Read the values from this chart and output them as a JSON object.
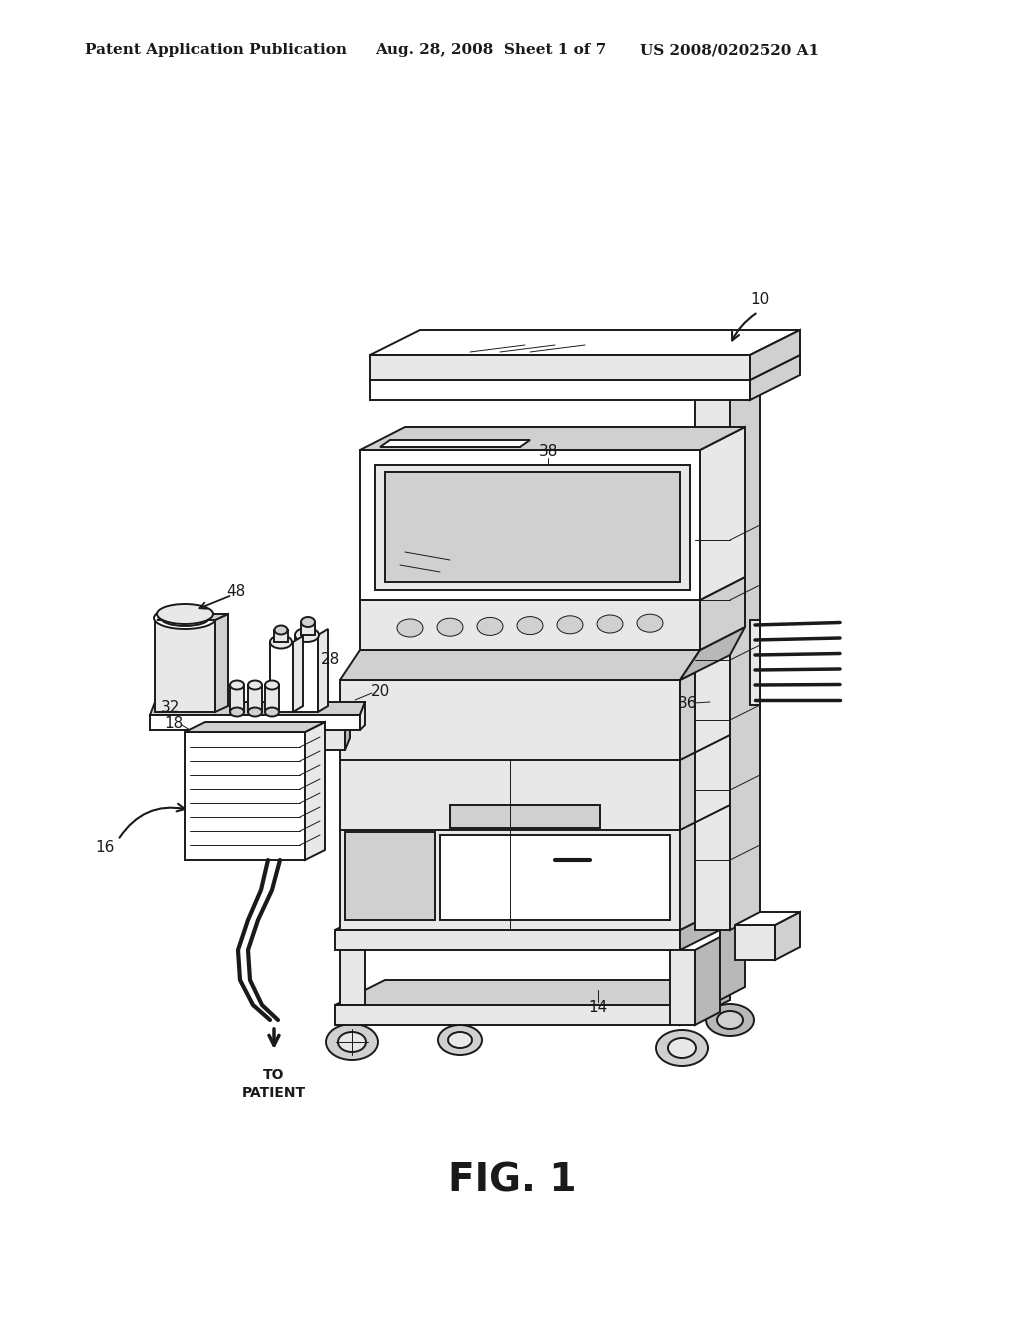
{
  "background_color": "#ffffff",
  "header_left": "Patent Application Publication",
  "header_center": "Aug. 28, 2008  Sheet 1 of 7",
  "header_right": "US 2008/0202520 A1",
  "caption": "FIG. 1",
  "header_fontsize": 11,
  "caption_fontsize": 28,
  "label_fontsize": 11,
  "line_color": "#1a1a1a",
  "line_width": 1.4,
  "thin_lw": 0.7,
  "fig_width": 10.24,
  "fig_height": 13.2
}
